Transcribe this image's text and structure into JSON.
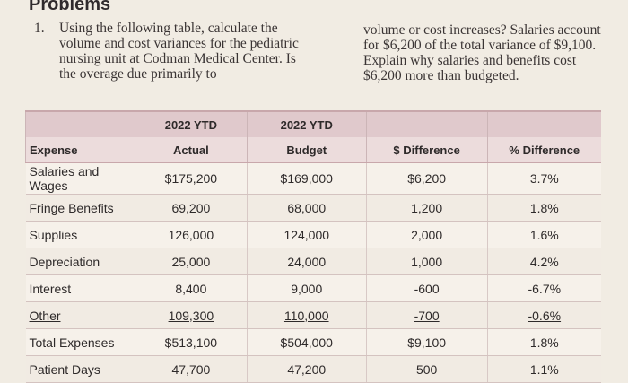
{
  "section_title": "Problems",
  "problem": {
    "number": "1.",
    "text_left": "Using the following table, calculate the volume and cost variances for the pediatric nursing unit at Codman Medical Center. Is the overage due primarily to",
    "text_right": "volume or cost increases? Salaries account for $6,200 of the total variance of $9,100. Explain why salaries and benefits cost $6,200 more than budgeted."
  },
  "table": {
    "header_row1": [
      "",
      "2022 YTD",
      "2022 YTD",
      "",
      ""
    ],
    "header_row2": [
      "Expense",
      "Actual",
      "Budget",
      "$ Difference",
      "% Difference"
    ],
    "rows": [
      [
        "Salaries and Wages",
        "$175,200",
        "$169,000",
        "$6,200",
        "3.7%"
      ],
      [
        "Fringe Benefits",
        "69,200",
        "68,000",
        "1,200",
        "1.8%"
      ],
      [
        "Supplies",
        "126,000",
        "124,000",
        "2,000",
        "1.6%"
      ],
      [
        "Depreciation",
        "25,000",
        "24,000",
        "1,000",
        "4.2%"
      ],
      [
        "Interest",
        "8,400",
        "9,000",
        "-600",
        "-6.7%"
      ],
      [
        "Other",
        "109,300",
        "110,000",
        "-700",
        "-0.6%"
      ],
      [
        "Total Expenses",
        "$513,100",
        "$504,000",
        "$9,100",
        "1.8%"
      ],
      [
        "Patient Days",
        "47,700",
        "47,200",
        "500",
        "1.1%"
      ]
    ]
  }
}
